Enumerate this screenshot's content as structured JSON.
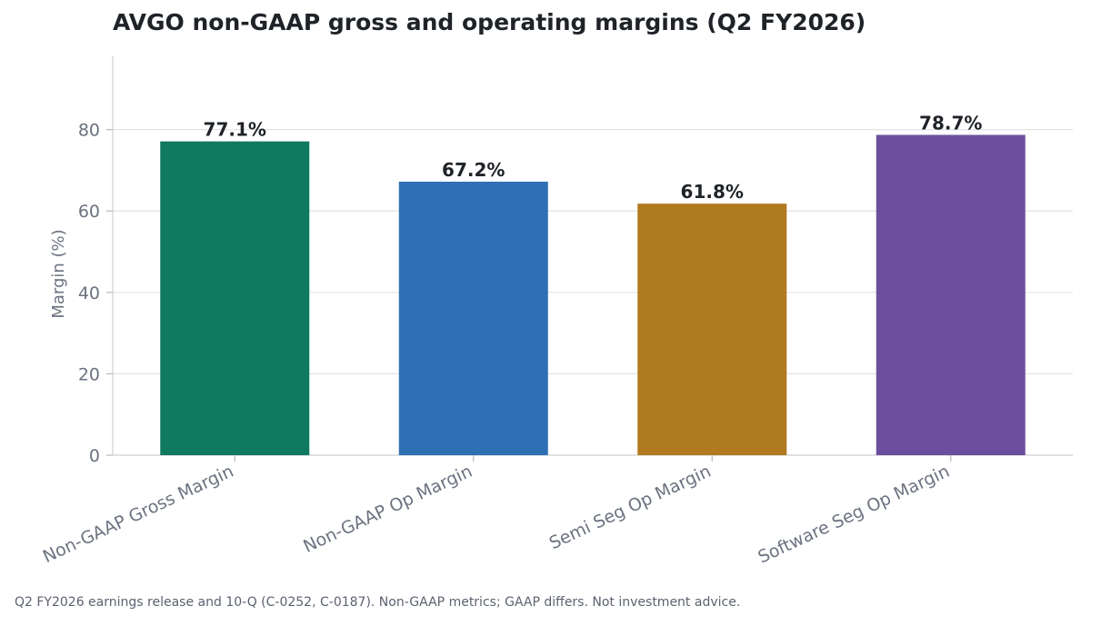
{
  "chart_data": {
    "type": "bar",
    "title": "AVGO non-GAAP gross and operating margins (Q2 FY2026)",
    "xlabel": "",
    "ylabel": "Margin (%)",
    "categories": [
      "Non-GAAP Gross Margin",
      "Non-GAAP Op Margin",
      "Semi Seg Op Margin",
      "Software Seg Op Margin"
    ],
    "values": [
      77.1,
      67.2,
      61.8,
      78.7
    ],
    "value_labels": [
      "77.1%",
      "67.2%",
      "61.8%",
      "78.7%"
    ],
    "colors": [
      "#0f7a5f",
      "#2e70b3",
      "#b07a1f",
      "#6b4f9e"
    ],
    "ylim": [
      0,
      98
    ],
    "yticks": [
      0,
      20,
      40,
      60,
      80
    ],
    "grid": true,
    "legend": "none"
  },
  "footnote": "Q2 FY2026 earnings release and 10-Q (C-0252, C-0187). Non-GAAP metrics; GAAP differs. Not investment advice."
}
